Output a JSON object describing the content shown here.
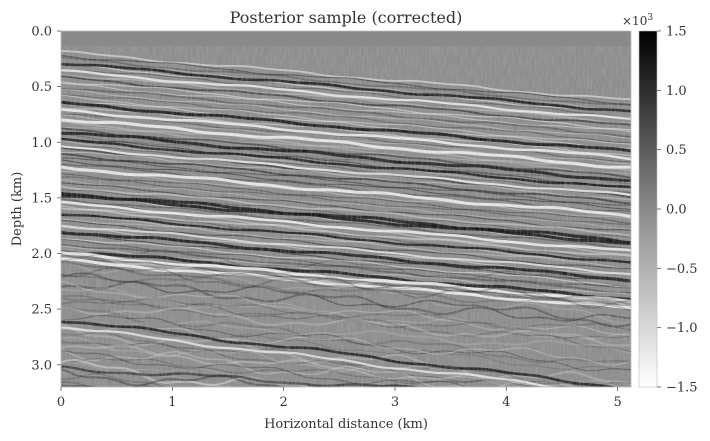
{
  "chart_data": {
    "type": "heatmap",
    "title": "Posterior sample (corrected)",
    "xlabel": "Horizontal distance (km)",
    "ylabel": "Depth (km)",
    "xlim": [
      0,
      5.12
    ],
    "ylim": [
      3.2,
      0
    ],
    "xticks": [
      "0",
      "1",
      "2",
      "3",
      "4",
      "5"
    ],
    "yticks": [
      "0.0",
      "0.5",
      "1.0",
      "1.5",
      "2.0",
      "2.5",
      "3.0"
    ],
    "colormap": "gray_r (white = negative, black = positive)",
    "colorbar": {
      "multiplier_label": "×10",
      "multiplier_exponent": "3",
      "range": [
        -1.5,
        1.5
      ],
      "ticks": [
        "1.5",
        "1.0",
        "0.5",
        "0.0",
        "−0.5",
        "−1.0",
        "−1.5"
      ]
    },
    "grid": false
  }
}
